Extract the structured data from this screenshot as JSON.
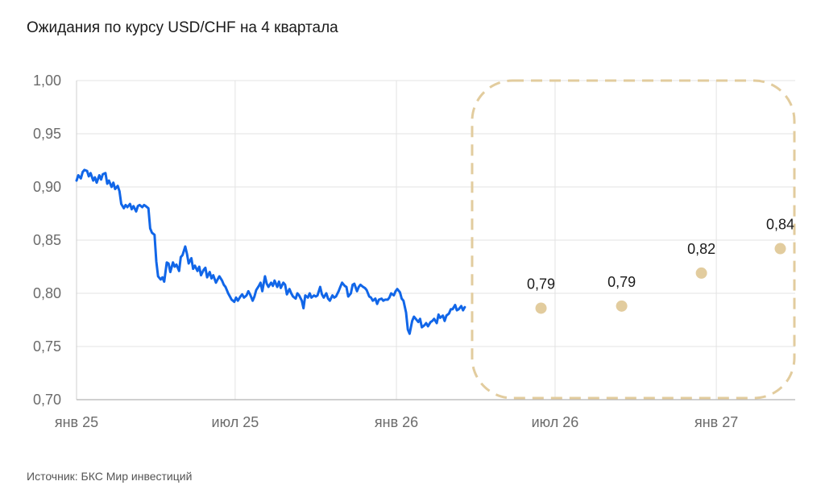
{
  "title": "Ожидания по курсу USD/CHF на 4 квартала",
  "source": "Источник: БКС Мир инвестиций",
  "colors": {
    "actual": "#1166e8",
    "forecast": "#e2cc9e",
    "forecast_box": "#e2cc9e",
    "grid": "#e3e3e3"
  },
  "chart_data": {
    "type": "line",
    "title": "Ожидания по курсу USD/CHF на 4 квартала",
    "x_axis": {
      "type": "date",
      "range": [
        "2025-01-01",
        "2027-04-01"
      ],
      "ticks": [
        "2025-01-01",
        "2025-07-01",
        "2026-01-01",
        "2026-07-01",
        "2027-01-01"
      ],
      "tick_labels": [
        "янв 25",
        "июл 25",
        "янв 26",
        "июл 26",
        "янв 27"
      ]
    },
    "y_axis": {
      "range": [
        0.7,
        1.0
      ],
      "ticks": [
        0.7,
        0.75,
        0.8,
        0.85,
        0.9,
        0.95,
        1.0
      ],
      "tick_labels": [
        "0,70",
        "0,75",
        "0,80",
        "0,85",
        "0,90",
        "0,95",
        "1,00"
      ]
    },
    "grid": true,
    "series": [
      {
        "kind": "line",
        "points": [
          [
            "2025-01-01",
            0.906
          ],
          [
            "2025-01-03",
            0.911
          ],
          [
            "2025-01-06",
            0.908
          ],
          [
            "2025-01-08",
            0.914
          ],
          [
            "2025-01-10",
            0.916
          ],
          [
            "2025-01-13",
            0.915
          ],
          [
            "2025-01-15",
            0.91
          ],
          [
            "2025-01-17",
            0.913
          ],
          [
            "2025-01-20",
            0.906
          ],
          [
            "2025-01-22",
            0.909
          ],
          [
            "2025-01-24",
            0.904
          ],
          [
            "2025-01-27",
            0.911
          ],
          [
            "2025-01-29",
            0.907
          ],
          [
            "2025-01-31",
            0.912
          ],
          [
            "2025-02-03",
            0.913
          ],
          [
            "2025-02-05",
            0.903
          ],
          [
            "2025-02-07",
            0.906
          ],
          [
            "2025-02-10",
            0.9
          ],
          [
            "2025-02-12",
            0.904
          ],
          [
            "2025-02-14",
            0.898
          ],
          [
            "2025-02-17",
            0.901
          ],
          [
            "2025-02-19",
            0.896
          ],
          [
            "2025-02-21",
            0.884
          ],
          [
            "2025-02-24",
            0.88
          ],
          [
            "2025-02-26",
            0.883
          ],
          [
            "2025-02-28",
            0.881
          ],
          [
            "2025-03-03",
            0.884
          ],
          [
            "2025-03-05",
            0.879
          ],
          [
            "2025-03-07",
            0.882
          ],
          [
            "2025-03-10",
            0.877
          ],
          [
            "2025-03-12",
            0.882
          ],
          [
            "2025-03-14",
            0.883
          ],
          [
            "2025-03-17",
            0.881
          ],
          [
            "2025-03-19",
            0.883
          ],
          [
            "2025-03-21",
            0.882
          ],
          [
            "2025-03-24",
            0.88
          ],
          [
            "2025-03-26",
            0.861
          ],
          [
            "2025-03-28",
            0.857
          ],
          [
            "2025-03-31",
            0.855
          ],
          [
            "2025-04-02",
            0.83
          ],
          [
            "2025-04-04",
            0.816
          ],
          [
            "2025-04-07",
            0.813
          ],
          [
            "2025-04-09",
            0.815
          ],
          [
            "2025-04-11",
            0.811
          ],
          [
            "2025-04-14",
            0.829
          ],
          [
            "2025-04-16",
            0.828
          ],
          [
            "2025-04-18",
            0.82
          ],
          [
            "2025-04-21",
            0.829
          ],
          [
            "2025-04-23",
            0.825
          ],
          [
            "2025-04-25",
            0.827
          ],
          [
            "2025-04-28",
            0.821
          ],
          [
            "2025-04-30",
            0.834
          ],
          [
            "2025-05-02",
            0.836
          ],
          [
            "2025-05-05",
            0.844
          ],
          [
            "2025-05-07",
            0.837
          ],
          [
            "2025-05-09",
            0.828
          ],
          [
            "2025-05-12",
            0.833
          ],
          [
            "2025-05-14",
            0.823
          ],
          [
            "2025-05-16",
            0.826
          ],
          [
            "2025-05-19",
            0.821
          ],
          [
            "2025-05-21",
            0.825
          ],
          [
            "2025-05-23",
            0.817
          ],
          [
            "2025-05-26",
            0.822
          ],
          [
            "2025-05-28",
            0.824
          ],
          [
            "2025-05-30",
            0.815
          ],
          [
            "2025-06-02",
            0.82
          ],
          [
            "2025-06-04",
            0.814
          ],
          [
            "2025-06-06",
            0.817
          ],
          [
            "2025-06-09",
            0.81
          ],
          [
            "2025-06-11",
            0.813
          ],
          [
            "2025-06-13",
            0.816
          ],
          [
            "2025-06-16",
            0.812
          ],
          [
            "2025-06-18",
            0.808
          ],
          [
            "2025-06-20",
            0.806
          ],
          [
            "2025-06-23",
            0.8
          ],
          [
            "2025-06-25",
            0.797
          ],
          [
            "2025-06-27",
            0.794
          ],
          [
            "2025-06-30",
            0.792
          ],
          [
            "2025-07-02",
            0.796
          ],
          [
            "2025-07-04",
            0.793
          ],
          [
            "2025-07-07",
            0.797
          ],
          [
            "2025-07-09",
            0.799
          ],
          [
            "2025-07-11",
            0.796
          ],
          [
            "2025-07-14",
            0.798
          ],
          [
            "2025-07-16",
            0.802
          ],
          [
            "2025-07-18",
            0.799
          ],
          [
            "2025-07-21",
            0.793
          ],
          [
            "2025-07-23",
            0.797
          ],
          [
            "2025-07-25",
            0.803
          ],
          [
            "2025-07-28",
            0.807
          ],
          [
            "2025-07-30",
            0.81
          ],
          [
            "2025-08-01",
            0.802
          ],
          [
            "2025-08-04",
            0.816
          ],
          [
            "2025-08-06",
            0.809
          ],
          [
            "2025-08-08",
            0.806
          ],
          [
            "2025-08-11",
            0.81
          ],
          [
            "2025-08-13",
            0.807
          ],
          [
            "2025-08-15",
            0.812
          ],
          [
            "2025-08-18",
            0.806
          ],
          [
            "2025-08-20",
            0.811
          ],
          [
            "2025-08-22",
            0.805
          ],
          [
            "2025-08-25",
            0.81
          ],
          [
            "2025-08-27",
            0.808
          ],
          [
            "2025-08-29",
            0.799
          ],
          [
            "2025-09-01",
            0.804
          ],
          [
            "2025-09-03",
            0.8
          ],
          [
            "2025-09-05",
            0.797
          ],
          [
            "2025-09-08",
            0.795
          ],
          [
            "2025-09-10",
            0.8
          ],
          [
            "2025-09-12",
            0.798
          ],
          [
            "2025-09-15",
            0.793
          ],
          [
            "2025-09-17",
            0.786
          ],
          [
            "2025-09-19",
            0.798
          ],
          [
            "2025-09-22",
            0.796
          ],
          [
            "2025-09-24",
            0.8
          ],
          [
            "2025-09-26",
            0.796
          ],
          [
            "2025-09-29",
            0.798
          ],
          [
            "2025-10-01",
            0.797
          ],
          [
            "2025-10-03",
            0.798
          ],
          [
            "2025-10-06",
            0.806
          ],
          [
            "2025-10-08",
            0.799
          ],
          [
            "2025-10-10",
            0.796
          ],
          [
            "2025-10-13",
            0.8
          ],
          [
            "2025-10-15",
            0.795
          ],
          [
            "2025-10-17",
            0.793
          ],
          [
            "2025-10-20",
            0.798
          ],
          [
            "2025-10-22",
            0.796
          ],
          [
            "2025-10-24",
            0.797
          ],
          [
            "2025-10-27",
            0.802
          ],
          [
            "2025-10-29",
            0.806
          ],
          [
            "2025-10-31",
            0.81
          ],
          [
            "2025-11-03",
            0.807
          ],
          [
            "2025-11-05",
            0.806
          ],
          [
            "2025-11-07",
            0.797
          ],
          [
            "2025-11-10",
            0.8
          ],
          [
            "2025-11-12",
            0.808
          ],
          [
            "2025-11-14",
            0.809
          ],
          [
            "2025-11-17",
            0.802
          ],
          [
            "2025-11-19",
            0.806
          ],
          [
            "2025-11-21",
            0.808
          ],
          [
            "2025-11-24",
            0.806
          ],
          [
            "2025-11-26",
            0.805
          ],
          [
            "2025-11-28",
            0.803
          ],
          [
            "2025-12-01",
            0.797
          ],
          [
            "2025-12-03",
            0.796
          ],
          [
            "2025-12-05",
            0.793
          ],
          [
            "2025-12-08",
            0.795
          ],
          [
            "2025-12-10",
            0.79
          ],
          [
            "2025-12-12",
            0.794
          ],
          [
            "2025-12-15",
            0.795
          ],
          [
            "2025-12-17",
            0.793
          ],
          [
            "2025-12-19",
            0.794
          ],
          [
            "2025-12-22",
            0.794
          ],
          [
            "2025-12-24",
            0.796
          ],
          [
            "2025-12-26",
            0.8
          ],
          [
            "2025-12-29",
            0.798
          ],
          [
            "2025-12-31",
            0.802
          ],
          [
            "2026-01-02",
            0.804
          ],
          [
            "2026-01-05",
            0.801
          ],
          [
            "2026-01-07",
            0.795
          ],
          [
            "2026-01-09",
            0.793
          ],
          [
            "2026-01-12",
            0.782
          ],
          [
            "2026-01-14",
            0.766
          ],
          [
            "2026-01-16",
            0.762
          ],
          [
            "2026-01-19",
            0.774
          ],
          [
            "2026-01-21",
            0.778
          ],
          [
            "2026-01-23",
            0.776
          ],
          [
            "2026-01-26",
            0.773
          ],
          [
            "2026-01-28",
            0.776
          ],
          [
            "2026-01-30",
            0.768
          ],
          [
            "2026-02-02",
            0.77
          ],
          [
            "2026-02-04",
            0.772
          ],
          [
            "2026-02-06",
            0.769
          ],
          [
            "2026-02-09",
            0.773
          ],
          [
            "2026-02-11",
            0.774
          ],
          [
            "2026-02-13",
            0.776
          ],
          [
            "2026-02-16",
            0.772
          ],
          [
            "2026-02-18",
            0.78
          ],
          [
            "2026-02-20",
            0.777
          ],
          [
            "2026-02-23",
            0.779
          ],
          [
            "2026-02-25",
            0.774
          ],
          [
            "2026-02-27",
            0.779
          ],
          [
            "2026-03-02",
            0.781
          ],
          [
            "2026-03-04",
            0.785
          ],
          [
            "2026-03-06",
            0.785
          ],
          [
            "2026-03-09",
            0.789
          ],
          [
            "2026-03-11",
            0.784
          ],
          [
            "2026-03-13",
            0.785
          ],
          [
            "2026-03-16",
            0.788
          ],
          [
            "2026-03-18",
            0.784
          ],
          [
            "2026-03-20",
            0.787
          ]
        ]
      },
      {
        "kind": "scatter",
        "points": [
          {
            "x": "2026-06-15",
            "y": 0.786,
            "label": "0,79"
          },
          {
            "x": "2026-09-15",
            "y": 0.788,
            "label": "0,79"
          },
          {
            "x": "2026-12-15",
            "y": 0.819,
            "label": "0,82"
          },
          {
            "x": "2027-03-15",
            "y": 0.842,
            "label": "0,84"
          }
        ]
      }
    ]
  }
}
